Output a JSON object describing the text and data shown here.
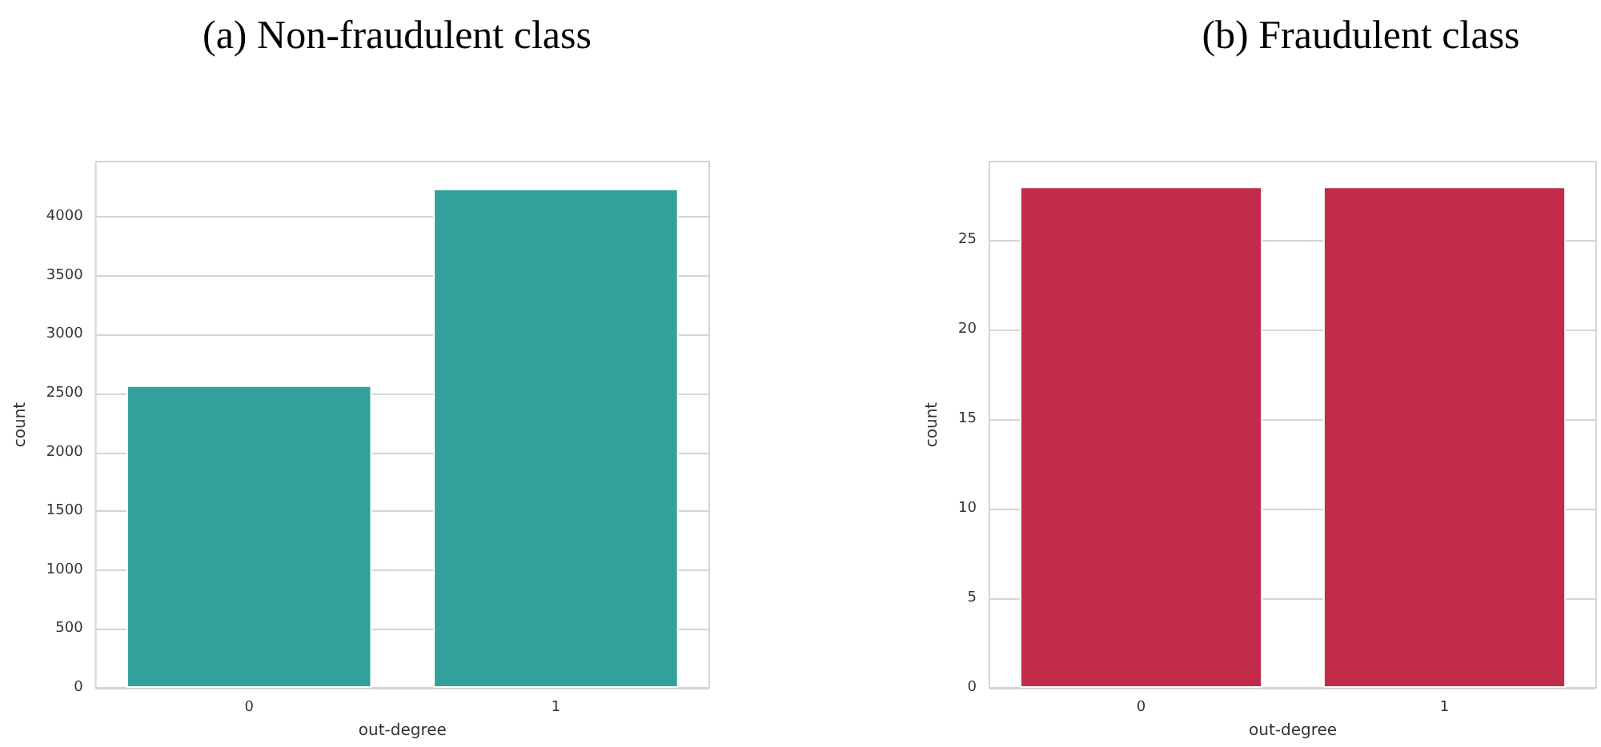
{
  "chart_data": [
    {
      "type": "bar",
      "title": "(a) Non-fraudulent class",
      "xlabel": "out-degree",
      "ylabel": "count",
      "categories": [
        "0",
        "1"
      ],
      "values": [
        2570,
        4240
      ],
      "color": "#33a19b",
      "ylim": [
        0,
        4470
      ],
      "yticks": [
        0,
        500,
        1000,
        1500,
        2000,
        2500,
        3000,
        3500,
        4000
      ],
      "grid": "y"
    },
    {
      "type": "bar",
      "title": "(b) Fraudulent class",
      "xlabel": "out-degree",
      "ylabel": "count",
      "categories": [
        "0",
        "1"
      ],
      "values": [
        28,
        28
      ],
      "color": "#c32b4a",
      "ylim": [
        0,
        29.4
      ],
      "yticks": [
        0,
        5,
        10,
        15,
        20,
        25
      ],
      "grid": "y"
    }
  ]
}
